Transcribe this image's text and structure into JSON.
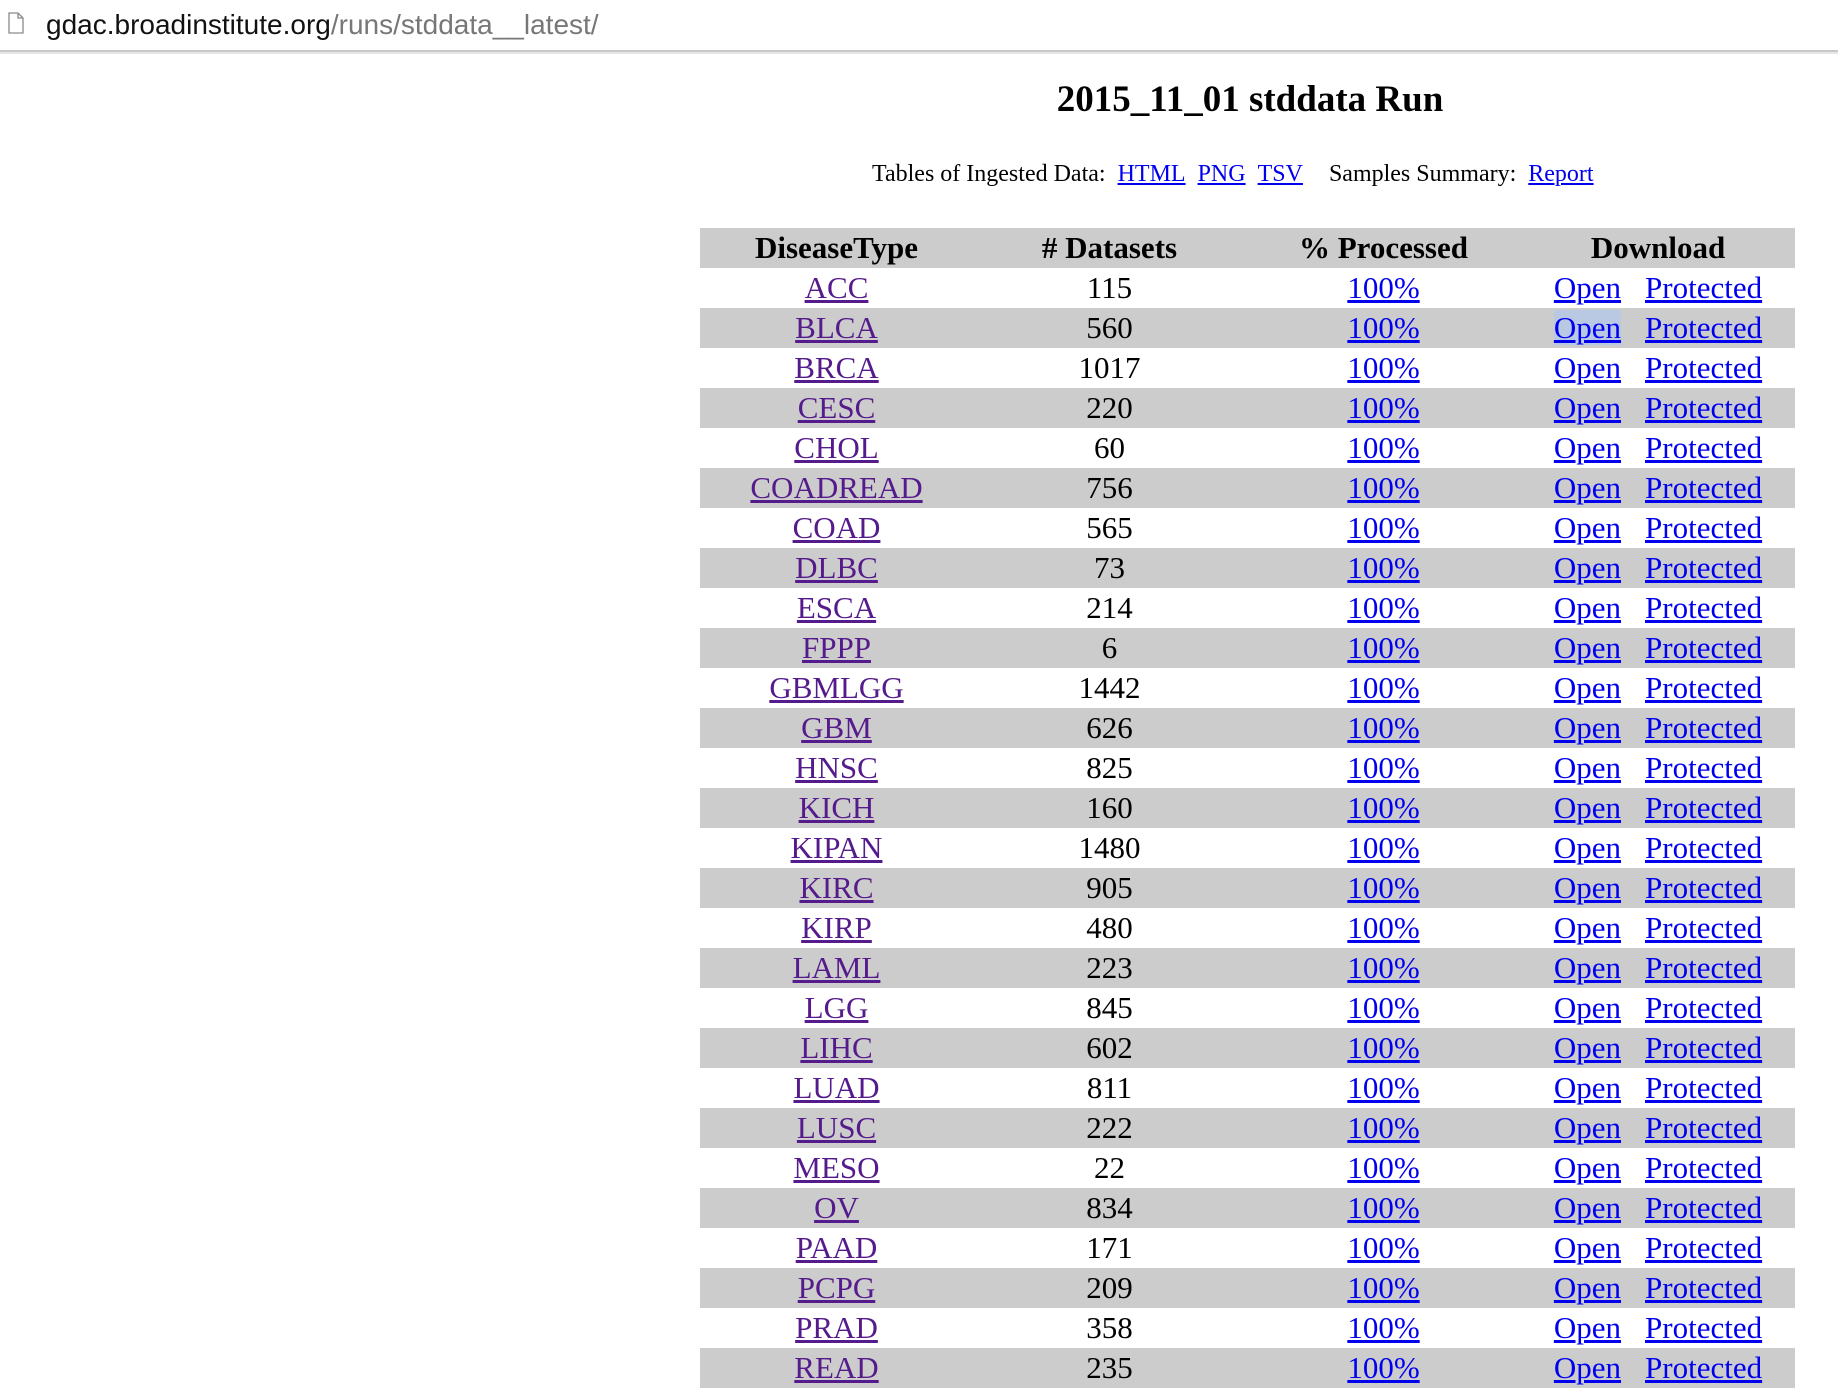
{
  "browser": {
    "url_host": "gdac.broadinstitute.org",
    "url_path": "/runs/stddata__latest/"
  },
  "page": {
    "title": "2015_11_01 stddata Run",
    "tables_label": "Tables of Ingested Data:",
    "tables_links": [
      "HTML",
      "PNG",
      "TSV"
    ],
    "summary_label": "Samples Summary:",
    "summary_link": "Report"
  },
  "table": {
    "headers": [
      "DiseaseType",
      "# Datasets",
      "% Processed",
      "Download"
    ],
    "download_open": "Open",
    "download_protected": "Protected",
    "rows": [
      {
        "disease": "ACC",
        "datasets": "115",
        "processed": "100%"
      },
      {
        "disease": "BLCA",
        "datasets": "560",
        "processed": "100%"
      },
      {
        "disease": "BRCA",
        "datasets": "1017",
        "processed": "100%"
      },
      {
        "disease": "CESC",
        "datasets": "220",
        "processed": "100%"
      },
      {
        "disease": "CHOL",
        "datasets": "60",
        "processed": "100%"
      },
      {
        "disease": "COADREAD",
        "datasets": "756",
        "processed": "100%"
      },
      {
        "disease": "COAD",
        "datasets": "565",
        "processed": "100%"
      },
      {
        "disease": "DLBC",
        "datasets": "73",
        "processed": "100%"
      },
      {
        "disease": "ESCA",
        "datasets": "214",
        "processed": "100%"
      },
      {
        "disease": "FPPP",
        "datasets": "6",
        "processed": "100%"
      },
      {
        "disease": "GBMLGG",
        "datasets": "1442",
        "processed": "100%"
      },
      {
        "disease": "GBM",
        "datasets": "626",
        "processed": "100%"
      },
      {
        "disease": "HNSC",
        "datasets": "825",
        "processed": "100%"
      },
      {
        "disease": "KICH",
        "datasets": "160",
        "processed": "100%"
      },
      {
        "disease": "KIPAN",
        "datasets": "1480",
        "processed": "100%"
      },
      {
        "disease": "KIRC",
        "datasets": "905",
        "processed": "100%"
      },
      {
        "disease": "KIRP",
        "datasets": "480",
        "processed": "100%"
      },
      {
        "disease": "LAML",
        "datasets": "223",
        "processed": "100%"
      },
      {
        "disease": "LGG",
        "datasets": "845",
        "processed": "100%"
      },
      {
        "disease": "LIHC",
        "datasets": "602",
        "processed": "100%"
      },
      {
        "disease": "LUAD",
        "datasets": "811",
        "processed": "100%"
      },
      {
        "disease": "LUSC",
        "datasets": "222",
        "processed": "100%"
      },
      {
        "disease": "MESO",
        "datasets": "22",
        "processed": "100%"
      },
      {
        "disease": "OV",
        "datasets": "834",
        "processed": "100%"
      },
      {
        "disease": "PAAD",
        "datasets": "171",
        "processed": "100%"
      },
      {
        "disease": "PCPG",
        "datasets": "209",
        "processed": "100%"
      },
      {
        "disease": "PRAD",
        "datasets": "358",
        "processed": "100%"
      },
      {
        "disease": "READ",
        "datasets": "235",
        "processed": "100%"
      }
    ]
  }
}
